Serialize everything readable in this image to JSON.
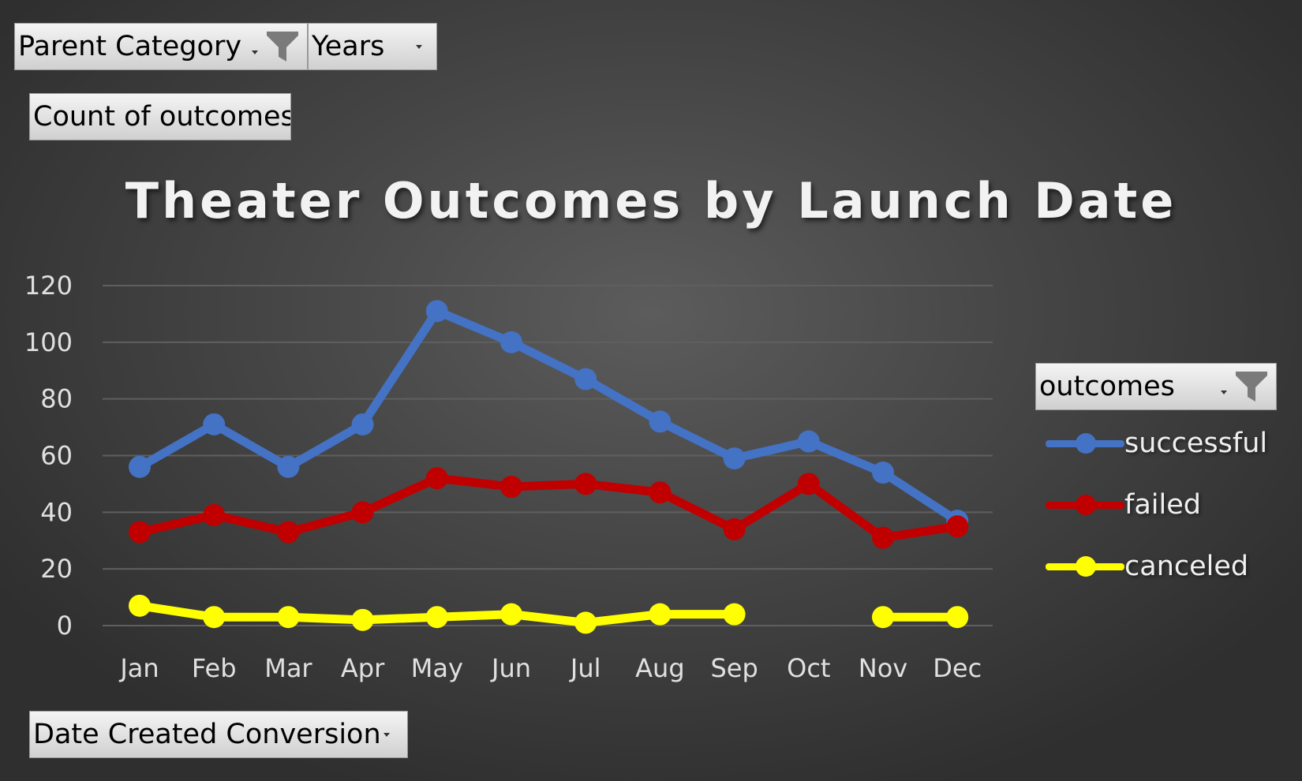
{
  "filters": {
    "parent_category": "Parent Category",
    "years": "Years",
    "values_field": "Count of outcomes",
    "axis_field": "Date Created Conversion",
    "legend_field": "outcomes"
  },
  "colors": {
    "successful": "#4472c4",
    "failed": "#c00000",
    "canceled": "#ffff00",
    "gridline": "#5f5f5f"
  },
  "icons": {
    "filter": "funnel-icon",
    "dropdown": "chevron-down-icon"
  },
  "chart_data": {
    "type": "line",
    "title": "Theater Outcomes by Launch Date",
    "xlabel": "",
    "ylabel": "",
    "categories": [
      "Jan",
      "Feb",
      "Mar",
      "Apr",
      "May",
      "Jun",
      "Jul",
      "Aug",
      "Sep",
      "Oct",
      "Nov",
      "Dec"
    ],
    "ylim": [
      0,
      120
    ],
    "yticks": [
      0,
      20,
      40,
      60,
      80,
      100,
      120
    ],
    "grid": true,
    "legend_position": "right",
    "series": [
      {
        "name": "successful",
        "values": [
          56,
          71,
          56,
          71,
          111,
          100,
          87,
          72,
          59,
          65,
          54,
          37
        ]
      },
      {
        "name": "failed",
        "values": [
          33,
          39,
          33,
          40,
          52,
          49,
          50,
          47,
          34,
          50,
          31,
          35
        ]
      },
      {
        "name": "canceled",
        "values": [
          7,
          3,
          3,
          2,
          3,
          4,
          1,
          4,
          4,
          null,
          3,
          3
        ]
      }
    ]
  }
}
